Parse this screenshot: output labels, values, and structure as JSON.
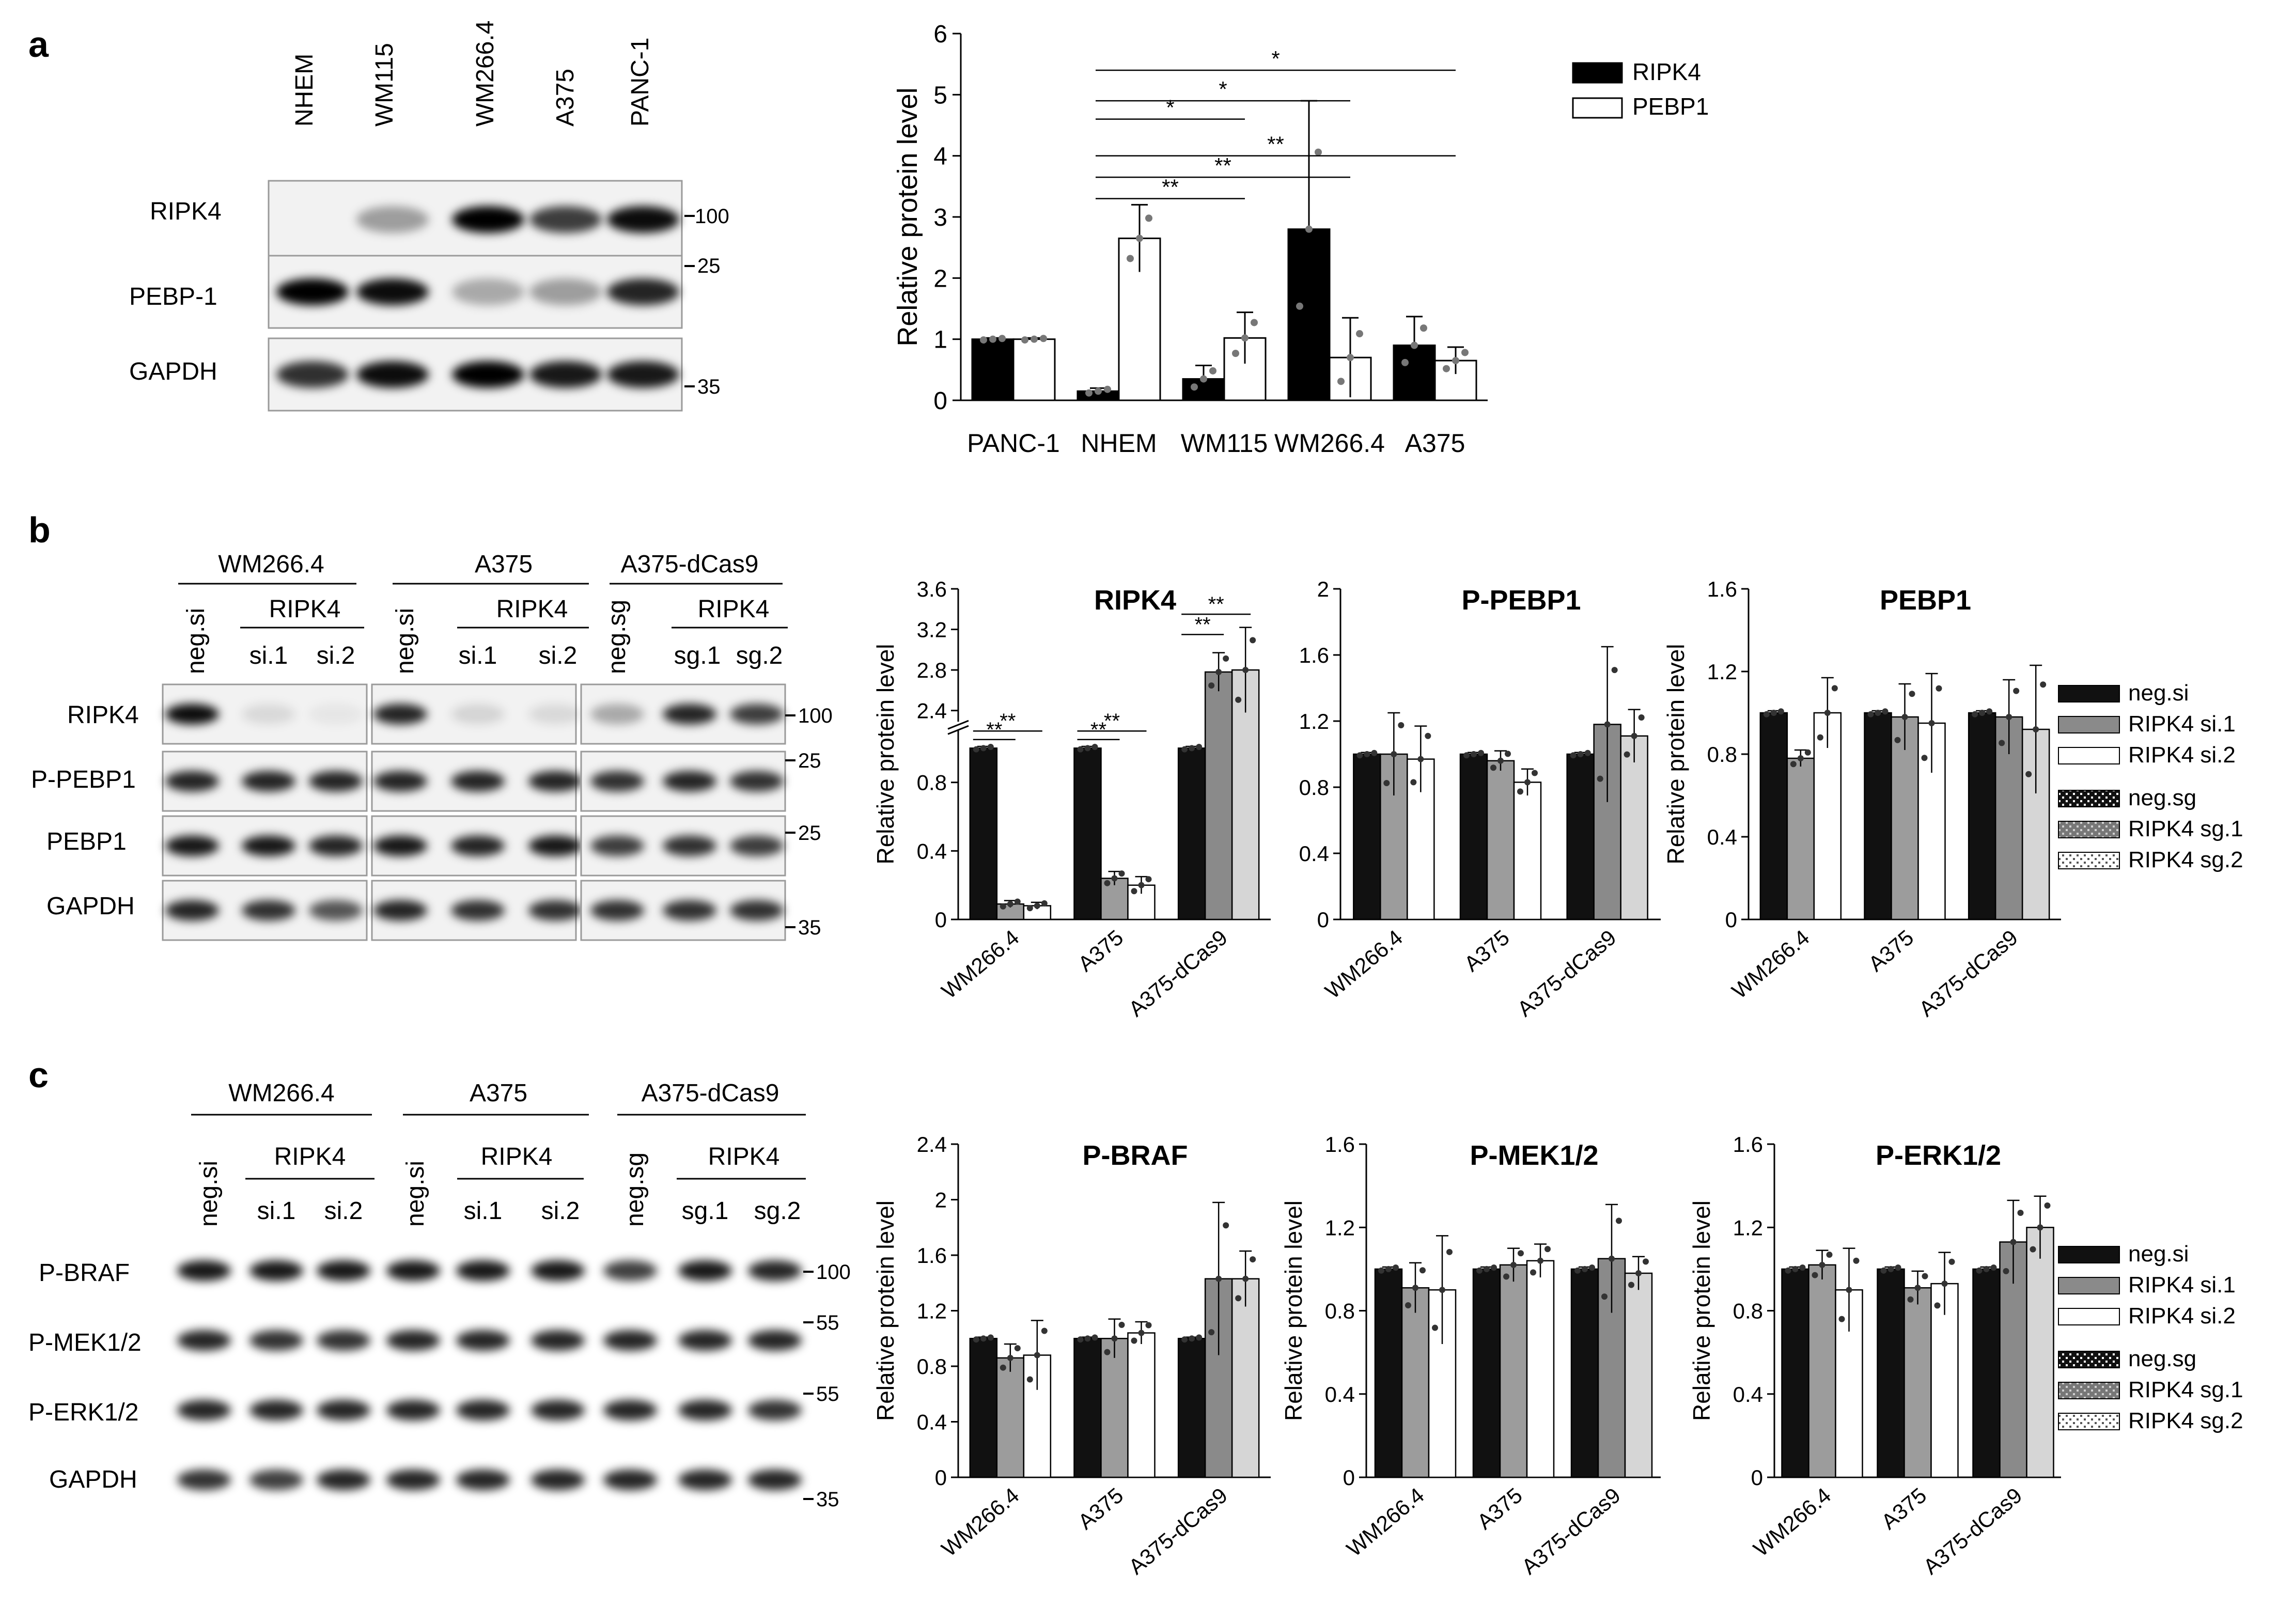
{
  "panel_letters": [
    "a",
    "b",
    "c"
  ],
  "blot_a": {
    "lanes": [
      "NHEM",
      "WM115",
      "WM266.4",
      "A375",
      "PANC-1"
    ],
    "rows": [
      "RIPK4",
      "PEBP-1",
      "GAPDH"
    ],
    "markers": [
      "100",
      "25",
      "35"
    ]
  },
  "blot_b": {
    "groups": [
      {
        "name": "WM266.4",
        "ctrl": "neg.si",
        "kd": "RIPK4",
        "kd_lanes": [
          "si.1",
          "si.2"
        ]
      },
      {
        "name": "A375",
        "ctrl": "neg.si",
        "kd": "RIPK4",
        "kd_lanes": [
          "si.1",
          "si.2"
        ]
      },
      {
        "name": "A375-dCas9",
        "ctrl": "neg.sg",
        "kd": "RIPK4",
        "kd_lanes": [
          "sg.1",
          "sg.2"
        ]
      }
    ],
    "rows": [
      "RIPK4",
      "P-PEBP1",
      "PEBP1",
      "GAPDH"
    ],
    "markers": [
      "100",
      "25",
      "25",
      "35"
    ]
  },
  "blot_c": {
    "groups": [
      {
        "name": "WM266.4",
        "ctrl": "neg.si",
        "kd": "RIPK4",
        "kd_lanes": [
          "si.1",
          "si.2"
        ]
      },
      {
        "name": "A375",
        "ctrl": "neg.si",
        "kd": "RIPK4",
        "kd_lanes": [
          "si.1",
          "si.2"
        ]
      },
      {
        "name": "A375-dCas9",
        "ctrl": "neg.sg",
        "kd": "RIPK4",
        "kd_lanes": [
          "sg.1",
          "sg.2"
        ]
      }
    ],
    "rows": [
      "P-BRAF",
      "P-MEK1/2",
      "P-ERK1/2",
      "GAPDH"
    ],
    "markers": [
      "100",
      "55",
      "55",
      "35"
    ]
  },
  "legend_b": [
    "neg.si",
    "RIPK4 si.1",
    "RIPK4 si.2",
    "neg.sg",
    "RIPK4 sg.1",
    "RIPK4 sg.2"
  ],
  "chart_data": [
    {
      "id": "a",
      "type": "bar",
      "ylabel": "Relative protein level",
      "ylim": [
        0,
        6
      ],
      "yticks": [
        "0",
        "1",
        "2",
        "3",
        "4",
        "5",
        "6"
      ],
      "categories": [
        "PANC-1",
        "NHEM",
        "WM115",
        "WM266.4",
        "A375"
      ],
      "series": [
        {
          "name": "RIPK4",
          "color": "#000000",
          "values": [
            1.0,
            0.15,
            0.35,
            2.8,
            0.9
          ],
          "err": [
            0.02,
            0.05,
            0.22,
            2.1,
            0.47
          ]
        },
        {
          "name": "PEBP1",
          "color": "#ffffff",
          "values": [
            1.0,
            2.65,
            1.02,
            0.7,
            0.65
          ],
          "err": [
            0.02,
            0.55,
            0.42,
            0.65,
            0.22
          ]
        }
      ],
      "significance": [
        {
          "label": "*",
          "from": "NHEM",
          "to": "A375",
          "y": 5.4
        },
        {
          "label": "*",
          "from": "NHEM",
          "to": "WM266.4",
          "y": 4.9
        },
        {
          "label": "*",
          "from": "NHEM",
          "to": "WM115",
          "y": 4.6
        },
        {
          "label": "**",
          "from": "NHEM",
          "to": "A375",
          "y": 4.0
        },
        {
          "label": "**",
          "from": "NHEM",
          "to": "WM266.4",
          "y": 3.65
        },
        {
          "label": "**",
          "from": "NHEM",
          "to": "WM115",
          "y": 3.3
        }
      ]
    },
    {
      "id": "b1",
      "type": "bar",
      "title": "RIPK4",
      "ylabel": "Relative protein level",
      "ylim": [
        0,
        3.6
      ],
      "axis_break": [
        1.1,
        2.3
      ],
      "yticks": [
        "0",
        "0.4",
        "0.8",
        "2.4",
        "2.8",
        "3.2",
        "3.6"
      ],
      "categories": [
        "WM266.4",
        "A375",
        "A375-dCas9"
      ],
      "values": [
        [
          1.0,
          0.09,
          0.08
        ],
        [
          1.0,
          0.24,
          0.2
        ],
        [
          1.0,
          2.78,
          2.8
        ]
      ],
      "err": [
        [
          0.01,
          0.02,
          0.02
        ],
        [
          0.01,
          0.04,
          0.05
        ],
        [
          0.01,
          0.19,
          0.42
        ]
      ],
      "significance": [
        {
          "label": "**",
          "cat": 0,
          "from": 0,
          "to": 2,
          "y": 1.1
        },
        {
          "label": "**",
          "cat": 0,
          "from": 0,
          "to": 1,
          "y": 1.05
        },
        {
          "label": "**",
          "cat": 1,
          "from": 0,
          "to": 2,
          "y": 1.1
        },
        {
          "label": "**",
          "cat": 1,
          "from": 0,
          "to": 1,
          "y": 1.05
        },
        {
          "label": "**",
          "cat": 2,
          "from": 0,
          "to": 2,
          "y": 3.35
        },
        {
          "label": "**",
          "cat": 2,
          "from": 0,
          "to": 1,
          "y": 3.15
        }
      ]
    },
    {
      "id": "b2",
      "type": "bar",
      "title": "P-PEBP1",
      "ylabel": "",
      "ylim": [
        0,
        2
      ],
      "yticks": [
        "0",
        "0.4",
        "0.8",
        "1.2",
        "1.6",
        "2"
      ],
      "categories": [
        "WM266.4",
        "A375",
        "A375-dCas9"
      ],
      "values": [
        [
          1.0,
          1.0,
          0.97
        ],
        [
          1.0,
          0.96,
          0.83
        ],
        [
          1.0,
          1.18,
          1.11
        ]
      ],
      "err": [
        [
          0.01,
          0.25,
          0.2
        ],
        [
          0.01,
          0.06,
          0.08
        ],
        [
          0.01,
          0.47,
          0.16
        ]
      ]
    },
    {
      "id": "b3",
      "type": "bar",
      "title": "PEBP1",
      "ylabel": "Relative protein level",
      "ylim": [
        0,
        1.6
      ],
      "yticks": [
        "0",
        "0.4",
        "0.8",
        "1.2",
        "1.6"
      ],
      "categories": [
        "WM266.4",
        "A375",
        "A375-dCas9"
      ],
      "values": [
        [
          1.0,
          0.78,
          1.0
        ],
        [
          1.0,
          0.98,
          0.95
        ],
        [
          1.0,
          0.98,
          0.92
        ]
      ],
      "err": [
        [
          0.01,
          0.04,
          0.17
        ],
        [
          0.01,
          0.16,
          0.24
        ],
        [
          0.01,
          0.18,
          0.31
        ]
      ]
    },
    {
      "id": "c1",
      "type": "bar",
      "title": "P-BRAF",
      "ylabel": "Relative protein level",
      "ylim": [
        0,
        2.4
      ],
      "yticks": [
        "0",
        "0.4",
        "0.8",
        "1.2",
        "1.6",
        "2",
        "2.4"
      ],
      "categories": [
        "WM266.4",
        "A375",
        "A375-dCas9"
      ],
      "values": [
        [
          1.0,
          0.86,
          0.88
        ],
        [
          1.0,
          1.0,
          1.04
        ],
        [
          1.0,
          1.43,
          1.43
        ]
      ],
      "err": [
        [
          0.01,
          0.1,
          0.25
        ],
        [
          0.01,
          0.14,
          0.08
        ],
        [
          0.01,
          0.55,
          0.2
        ]
      ]
    },
    {
      "id": "c2",
      "type": "bar",
      "title": "P-MEK1/2",
      "ylabel": "Relative protein level",
      "ylim": [
        0,
        1.6
      ],
      "yticks": [
        "0",
        "0.4",
        "0.8",
        "1.2",
        "1.6"
      ],
      "categories": [
        "WM266.4",
        "A375",
        "A375-dCas9"
      ],
      "values": [
        [
          1.0,
          0.91,
          0.9
        ],
        [
          1.0,
          1.02,
          1.04
        ],
        [
          1.0,
          1.05,
          0.98
        ]
      ],
      "err": [
        [
          0.01,
          0.12,
          0.26
        ],
        [
          0.01,
          0.08,
          0.08
        ],
        [
          0.01,
          0.26,
          0.08
        ]
      ]
    },
    {
      "id": "c3",
      "type": "bar",
      "title": "P-ERK1/2",
      "ylabel": "Relative protein level",
      "ylim": [
        0,
        1.6
      ],
      "yticks": [
        "0",
        "0.4",
        "0.8",
        "1.2",
        "1.6"
      ],
      "categories": [
        "WM266.4",
        "A375",
        "A375-dCas9"
      ],
      "values": [
        [
          1.0,
          1.02,
          0.9
        ],
        [
          1.0,
          0.91,
          0.93
        ],
        [
          1.0,
          1.13,
          1.2
        ]
      ],
      "err": [
        [
          0.01,
          0.07,
          0.2
        ],
        [
          0.01,
          0.08,
          0.15
        ],
        [
          0.01,
          0.2,
          0.15
        ]
      ]
    }
  ]
}
